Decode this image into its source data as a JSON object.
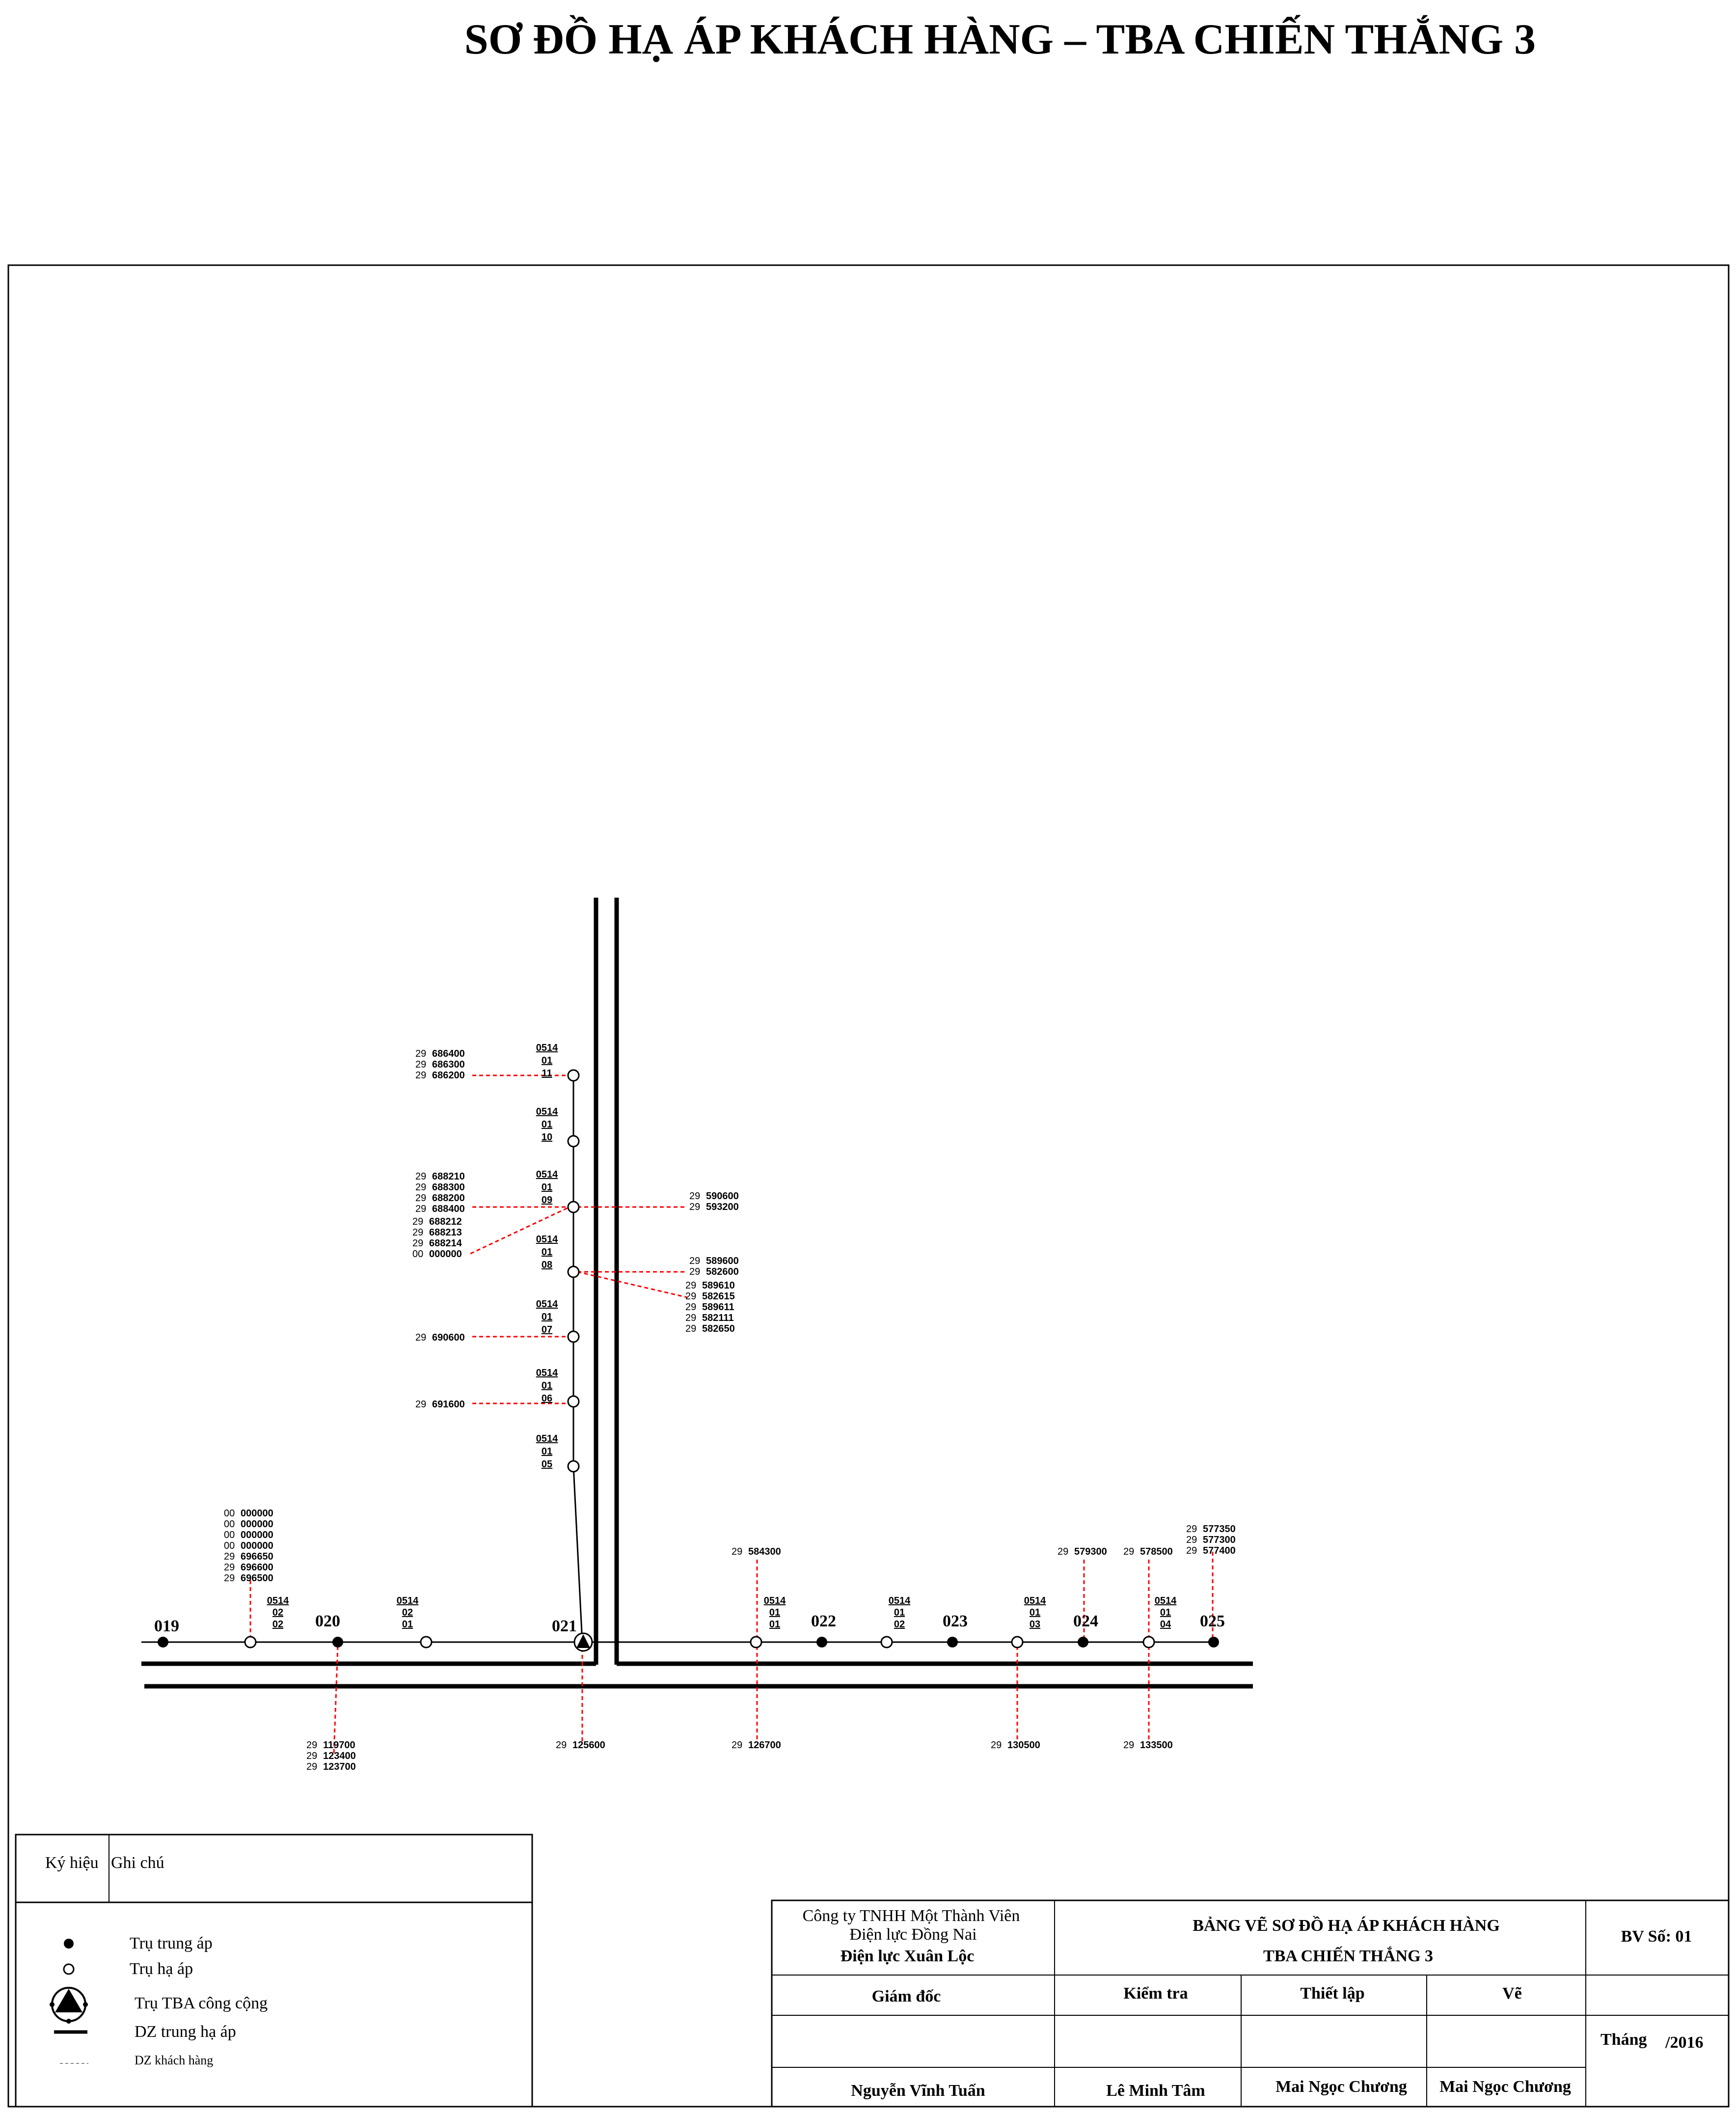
{
  "title": "SƠ ĐỒ HẠ ÁP KHÁCH HÀNG – TBA CHIẾN THẮNG 3",
  "colors": {
    "line": "#000000",
    "customer_line": "#ff0000"
  },
  "poles_mv": [
    {
      "label": "019"
    },
    {
      "label": "020"
    },
    {
      "label": "021"
    },
    {
      "label": "022"
    },
    {
      "label": "023"
    },
    {
      "label": "024"
    },
    {
      "label": "025"
    }
  ],
  "lv_codes": {
    "h0201": [
      "0514",
      "02",
      "01"
    ],
    "h0202": [
      "0514",
      "02",
      "02"
    ],
    "h0101": [
      "0514",
      "01",
      "01"
    ],
    "h0102": [
      "0514",
      "01",
      "02"
    ],
    "h0103": [
      "0514",
      "01",
      "03"
    ],
    "h0104": [
      "0514",
      "01",
      "04"
    ],
    "v05": [
      "0514",
      "01",
      "05"
    ],
    "v06": [
      "0514",
      "01",
      "06"
    ],
    "v07": [
      "0514",
      "01",
      "07"
    ],
    "v08": [
      "0514",
      "01",
      "08"
    ],
    "v09": [
      "0514",
      "01",
      "09"
    ],
    "v10": [
      "0514",
      "01",
      "10"
    ],
    "v11": [
      "0514",
      "01",
      "11"
    ]
  },
  "customers": {
    "c11": [
      [
        "29",
        "686400"
      ],
      [
        "29",
        "686300"
      ],
      [
        "29",
        "686200"
      ]
    ],
    "c09_left": [
      [
        "29",
        "688210"
      ],
      [
        "29",
        "688300"
      ],
      [
        "29",
        "688200"
      ],
      [
        "29",
        "688400"
      ]
    ],
    "c09_left2": [
      [
        "29",
        "688212"
      ],
      [
        "29",
        "688213"
      ],
      [
        "29",
        "688214"
      ],
      [
        "00",
        "000000"
      ]
    ],
    "c09_right": [
      [
        "29",
        "590600"
      ],
      [
        "29",
        "593200"
      ]
    ],
    "c08_right": [
      [
        "29",
        "589600"
      ],
      [
        "29",
        "582600"
      ]
    ],
    "c08_right2": [
      [
        "29",
        "589610"
      ],
      [
        "29",
        "582615"
      ],
      [
        "29",
        "589611"
      ],
      [
        "29",
        "582111"
      ],
      [
        "29",
        "582650"
      ]
    ],
    "c07": [
      [
        "29",
        "690600"
      ]
    ],
    "c06": [
      [
        "29",
        "691600"
      ]
    ],
    "c0202": [
      [
        "00",
        "000000"
      ],
      [
        "00",
        "000000"
      ],
      [
        "00",
        "000000"
      ],
      [
        "00",
        "000000"
      ],
      [
        "29",
        "696650"
      ],
      [
        "29",
        "696600"
      ],
      [
        "29",
        "696500"
      ]
    ],
    "c020": [
      [
        "29",
        "119700"
      ],
      [
        "29",
        "123400"
      ],
      [
        "29",
        "123700"
      ]
    ],
    "c021": [
      [
        "29",
        "125600"
      ]
    ],
    "c0101_top": [
      [
        "29",
        "584300"
      ]
    ],
    "c0101_bot": [
      [
        "29",
        "126700"
      ]
    ],
    "c024": [
      [
        "29",
        "579300"
      ]
    ],
    "c0103": [
      [
        "29",
        "130500"
      ]
    ],
    "c0104_top": [
      [
        "29",
        "578500"
      ]
    ],
    "c0104_bot": [
      [
        "29",
        "133500"
      ]
    ],
    "c025": [
      [
        "29",
        "577350"
      ],
      [
        "29",
        "577300"
      ],
      [
        "29",
        "577400"
      ]
    ]
  },
  "legend": {
    "col1": "Ký hiệu",
    "col2": "Ghi chú",
    "items": [
      "Trụ trung áp",
      "Trụ hạ áp",
      "Trụ TBA công cộng",
      "DZ trung hạ áp",
      "DZ khách hàng"
    ]
  },
  "titleblock": {
    "company1": "Công ty TNHH Một Thành Viên",
    "company2": "Điện lực Đồng Nai",
    "company3": "Điện lực Xuân Lộc",
    "drawing1": "BẢNG VẼ SƠ ĐỒ HẠ ÁP KHÁCH HÀNG",
    "drawing2": "TBA CHIẾN THẮNG 3",
    "bv": "BV Số: 01",
    "role1": "Giám đốc",
    "role2": "Kiểm tra",
    "role3": "Thiết lập",
    "role4": "Vẽ",
    "month": "Tháng",
    "year": "/2016",
    "name1": "Nguyễn Vĩnh Tuấn",
    "name2": "Lê Minh Tâm",
    "name3": "Mai Ngọc Chương",
    "name4": "Mai Ngọc Chương"
  }
}
